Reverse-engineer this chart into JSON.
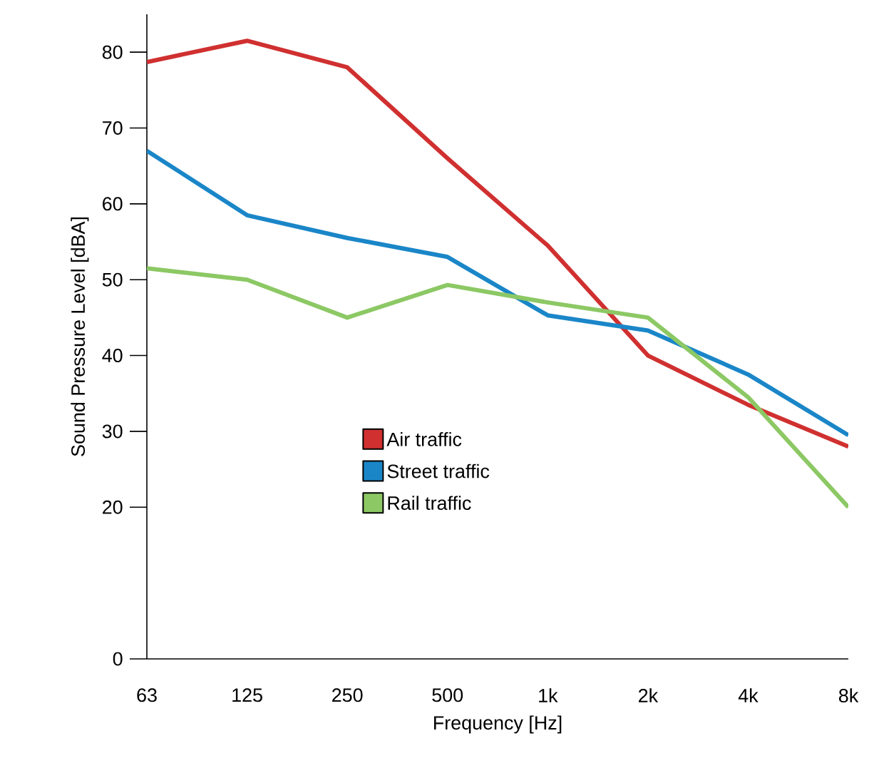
{
  "chart_data": {
    "type": "line",
    "xlabel": "Frequency [Hz]",
    "ylabel": "Sound Pressure Level [dBA]",
    "categories": [
      "63",
      "125",
      "250",
      "500",
      "1k",
      "2k",
      "4k",
      "8k"
    ],
    "ylim": [
      0,
      85
    ],
    "yticks": [
      0,
      20,
      30,
      40,
      50,
      60,
      70,
      80
    ],
    "legend": "center",
    "series": [
      {
        "name": "Air traffic",
        "color": "#d03030",
        "values": [
          78.7,
          81.5,
          78,
          66,
          54.5,
          40,
          33.5,
          28
        ]
      },
      {
        "name": "Street traffic",
        "color": "#1a86c8",
        "values": [
          67,
          58.5,
          55.5,
          53,
          45.3,
          43.3,
          37.5,
          29.5
        ]
      },
      {
        "name": "Rail traffic",
        "color": "#8cc864",
        "values": [
          51.5,
          50,
          45,
          49.3,
          47,
          45,
          34.5,
          20
        ]
      }
    ]
  }
}
